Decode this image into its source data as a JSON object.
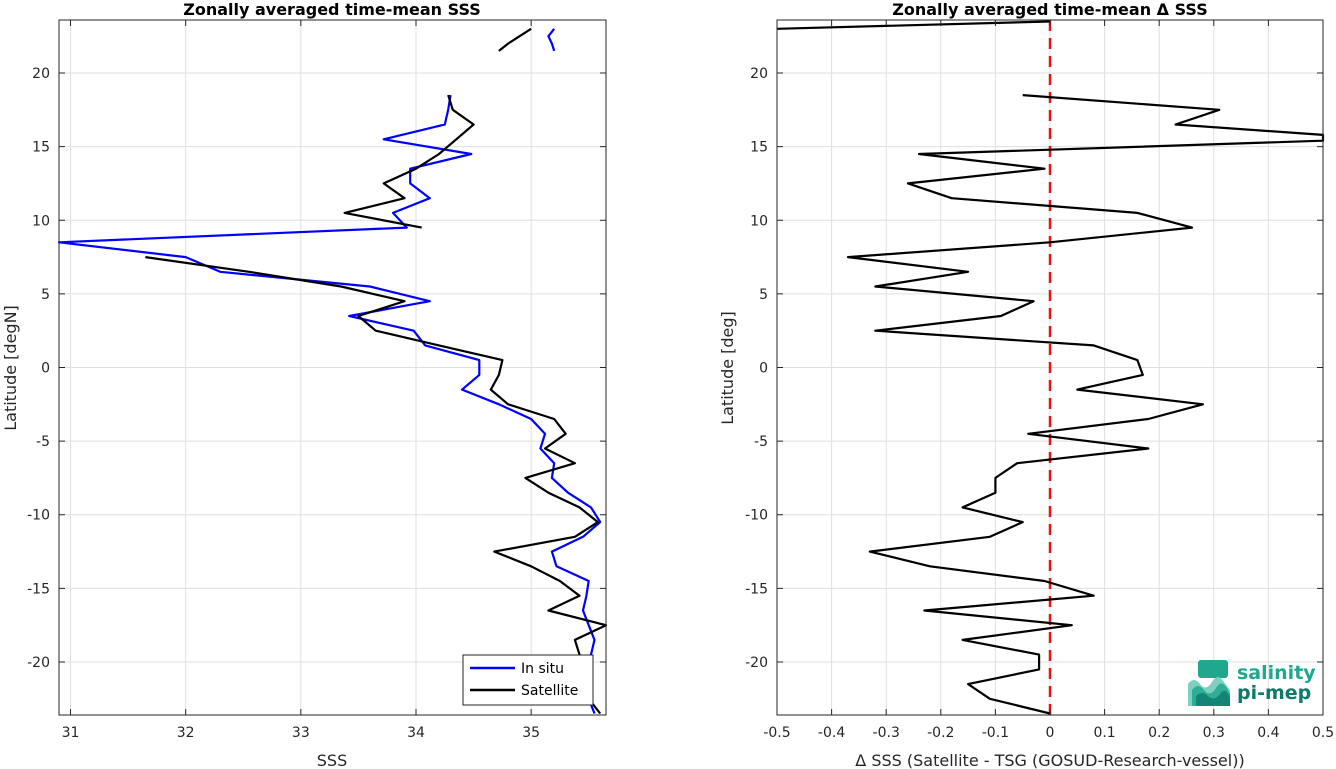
{
  "chart_data": [
    {
      "type": "line",
      "title": "Zonally averaged time-mean SSS",
      "xlabel": "SSS",
      "ylabel": "Latitude [degN]",
      "xlim": [
        30.9,
        35.65
      ],
      "ylim": [
        -23.6,
        23.6
      ],
      "xticks": [
        31,
        32,
        33,
        34,
        35
      ],
      "yticks": [
        -20,
        -15,
        -10,
        -5,
        0,
        5,
        10,
        15,
        20
      ],
      "grid": true,
      "legend_position": "bottom-right",
      "series": [
        {
          "name": "In situ",
          "color": "#0000ff",
          "segments": [
            [
              [
                35.2,
                23.0
              ],
              [
                35.15,
                22.5
              ],
              [
                35.18,
                22.0
              ],
              [
                35.2,
                21.5
              ]
            ],
            [
              [
                34.3,
                18.5
              ],
              [
                34.28,
                17.5
              ],
              [
                34.25,
                16.5
              ],
              [
                33.72,
                15.5
              ],
              [
                34.48,
                14.5
              ],
              [
                33.95,
                13.5
              ],
              [
                33.95,
                12.5
              ],
              [
                34.12,
                11.5
              ],
              [
                33.8,
                10.5
              ],
              [
                33.92,
                9.5
              ],
              [
                30.9,
                8.5
              ],
              [
                32.0,
                7.5
              ],
              [
                32.3,
                6.5
              ],
              [
                33.6,
                5.5
              ],
              [
                34.12,
                4.5
              ],
              [
                33.42,
                3.5
              ],
              [
                33.98,
                2.5
              ],
              [
                34.08,
                1.5
              ],
              [
                34.55,
                0.5
              ],
              [
                34.55,
                -0.5
              ],
              [
                34.4,
                -1.5
              ],
              [
                34.72,
                -2.5
              ],
              [
                35.0,
                -3.5
              ],
              [
                35.12,
                -4.5
              ],
              [
                35.08,
                -5.5
              ],
              [
                35.2,
                -6.5
              ],
              [
                35.18,
                -7.5
              ],
              [
                35.32,
                -8.5
              ],
              [
                35.52,
                -9.5
              ],
              [
                35.6,
                -10.5
              ],
              [
                35.45,
                -11.5
              ],
              [
                35.18,
                -12.5
              ],
              [
                35.22,
                -13.5
              ],
              [
                35.5,
                -14.5
              ],
              [
                35.48,
                -15.5
              ],
              [
                35.45,
                -16.5
              ],
              [
                35.5,
                -17.5
              ],
              [
                35.55,
                -18.5
              ],
              [
                35.52,
                -19.5
              ],
              [
                35.42,
                -20.5
              ],
              [
                35.45,
                -21.5
              ],
              [
                35.5,
                -22.5
              ],
              [
                35.55,
                -23.5
              ]
            ]
          ]
        },
        {
          "name": "Satellite",
          "color": "#000000",
          "segments": [
            [
              [
                35.0,
                23.0
              ],
              [
                34.9,
                22.5
              ],
              [
                34.8,
                22.0
              ],
              [
                34.72,
                21.5
              ]
            ],
            [
              [
                34.28,
                18.5
              ],
              [
                34.32,
                17.5
              ],
              [
                34.5,
                16.5
              ],
              [
                34.35,
                15.5
              ],
              [
                34.2,
                14.5
              ],
              [
                34.0,
                13.5
              ],
              [
                33.72,
                12.5
              ],
              [
                33.9,
                11.5
              ],
              [
                33.38,
                10.5
              ],
              [
                34.05,
                9.5
              ]
            ],
            [
              [
                31.65,
                7.5
              ],
              [
                32.55,
                6.5
              ],
              [
                33.35,
                5.5
              ],
              [
                33.9,
                4.5
              ],
              [
                33.5,
                3.5
              ],
              [
                33.65,
                2.5
              ],
              [
                34.2,
                1.5
              ],
              [
                34.75,
                0.5
              ],
              [
                34.72,
                -0.5
              ],
              [
                34.65,
                -1.5
              ],
              [
                34.8,
                -2.5
              ],
              [
                35.2,
                -3.5
              ],
              [
                35.3,
                -4.5
              ],
              [
                35.12,
                -5.5
              ],
              [
                35.38,
                -6.5
              ],
              [
                34.95,
                -7.5
              ],
              [
                35.15,
                -8.5
              ],
              [
                35.42,
                -9.5
              ],
              [
                35.58,
                -10.5
              ],
              [
                35.38,
                -11.5
              ],
              [
                34.68,
                -12.5
              ],
              [
                35.0,
                -13.5
              ],
              [
                35.25,
                -14.5
              ],
              [
                35.42,
                -15.5
              ],
              [
                35.15,
                -16.5
              ],
              [
                35.65,
                -17.5
              ],
              [
                35.38,
                -18.5
              ],
              [
                35.42,
                -19.5
              ],
              [
                35.35,
                -20.5
              ],
              [
                35.45,
                -21.5
              ],
              [
                35.5,
                -22.5
              ],
              [
                35.6,
                -23.5
              ]
            ]
          ]
        }
      ]
    },
    {
      "type": "line",
      "title": "Zonally averaged time-mean Δ SSS",
      "xlabel": "Δ SSS (Satellite - TSG (GOSUD-Research-vessel))",
      "ylabel": "Latitude [deg]",
      "xlim": [
        -0.5,
        0.5
      ],
      "ylim": [
        -23.6,
        23.6
      ],
      "xticks": [
        -0.5,
        -0.4,
        -0.3,
        -0.2,
        -0.1,
        0,
        0.1,
        0.2,
        0.3,
        0.4,
        0.5
      ],
      "xticklabels": [
        "-0.5",
        "-0.4",
        "-0.3",
        "-0.2",
        "-0.1",
        "0",
        "0.1",
        "0.2",
        "0.3",
        "0.4",
        "0.5"
      ],
      "yticks": [
        -20,
        -15,
        -10,
        -5,
        0,
        5,
        10,
        15,
        20
      ],
      "grid": true,
      "reference_line": {
        "x": 0,
        "color": "#ee1111",
        "style": "dashed"
      },
      "series": [
        {
          "color": "#000000",
          "segments": [
            [
              [
                -0.5,
                23.0
              ],
              [
                0.0,
                23.5
              ]
            ],
            [
              [
                -0.05,
                18.5
              ],
              [
                0.31,
                17.5
              ],
              [
                0.23,
                16.5
              ],
              [
                0.5,
                15.8
              ],
              [
                0.5,
                15.4
              ],
              [
                -0.24,
                14.5
              ],
              [
                -0.01,
                13.5
              ],
              [
                -0.26,
                12.5
              ],
              [
                -0.18,
                11.5
              ],
              [
                0.16,
                10.5
              ],
              [
                0.26,
                9.5
              ],
              [
                0.0,
                8.5
              ],
              [
                -0.37,
                7.5
              ],
              [
                -0.15,
                6.5
              ],
              [
                -0.32,
                5.5
              ],
              [
                -0.03,
                4.5
              ],
              [
                -0.09,
                3.5
              ],
              [
                -0.32,
                2.5
              ],
              [
                0.08,
                1.5
              ],
              [
                0.16,
                0.5
              ],
              [
                0.17,
                -0.5
              ],
              [
                0.05,
                -1.5
              ],
              [
                0.28,
                -2.5
              ],
              [
                0.18,
                -3.5
              ],
              [
                -0.04,
                -4.5
              ],
              [
                0.18,
                -5.5
              ],
              [
                -0.06,
                -6.5
              ],
              [
                -0.1,
                -7.5
              ],
              [
                -0.1,
                -8.5
              ],
              [
                -0.16,
                -9.5
              ],
              [
                -0.05,
                -10.5
              ],
              [
                -0.11,
                -11.5
              ],
              [
                -0.33,
                -12.5
              ],
              [
                -0.22,
                -13.5
              ],
              [
                -0.01,
                -14.5
              ],
              [
                0.08,
                -15.5
              ],
              [
                -0.23,
                -16.5
              ],
              [
                0.04,
                -17.5
              ],
              [
                -0.16,
                -18.5
              ],
              [
                -0.02,
                -19.5
              ],
              [
                -0.02,
                -20.5
              ],
              [
                -0.15,
                -21.5
              ],
              [
                -0.11,
                -22.5
              ],
              [
                0.0,
                -23.5
              ]
            ]
          ]
        }
      ]
    }
  ],
  "legend": {
    "items": [
      {
        "label": "In situ",
        "color": "#0000ff"
      },
      {
        "label": "Satellite",
        "color": "#000000"
      }
    ]
  },
  "logo": {
    "line1": "salinity",
    "line2": "pi-mep",
    "colors": [
      "#1fa88e",
      "#0e7a6b",
      "#7fd1bf"
    ]
  }
}
